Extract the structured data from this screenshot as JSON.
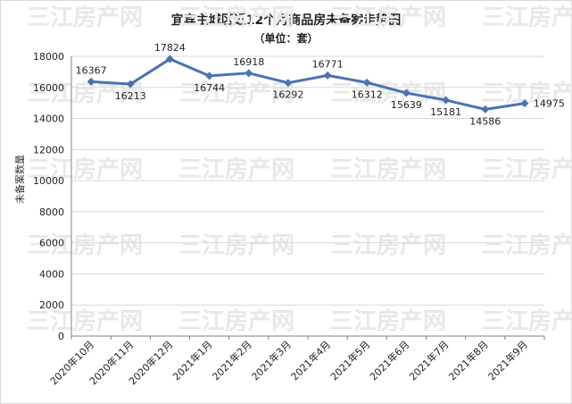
{
  "colors": {
    "line": "#4a73b2",
    "grid": "#d9d9d9",
    "axis": "#808080",
    "text": "#222222",
    "watermark": "#e8e8e8"
  },
  "watermark": "三江房产网",
  "chart_data": {
    "type": "line",
    "title": "宜宾主城区近12个月商品房未备案走势图",
    "subtitle": "（单位：套）",
    "xlabel": "",
    "ylabel": "未备案数量",
    "ylim": [
      0,
      18000
    ],
    "ytick_step": 2000,
    "yticks": [
      "0",
      "2000",
      "4000",
      "6000",
      "8000",
      "10000",
      "12000",
      "14000",
      "16000",
      "18000"
    ],
    "grid": true,
    "categories": [
      "2020年10月",
      "2020年11月",
      "2020年12月",
      "2021年1月",
      "2021年2月",
      "2021年3月",
      "2021年4月",
      "2021年5月",
      "2021年6月",
      "2021年7月",
      "2021年8月",
      "2021年9月"
    ],
    "series": [
      {
        "name": "未备案数量",
        "values": [
          16367,
          16213,
          17824,
          16744,
          16918,
          16292,
          16771,
          16312,
          15639,
          15181,
          14586,
          14975
        ]
      }
    ]
  }
}
